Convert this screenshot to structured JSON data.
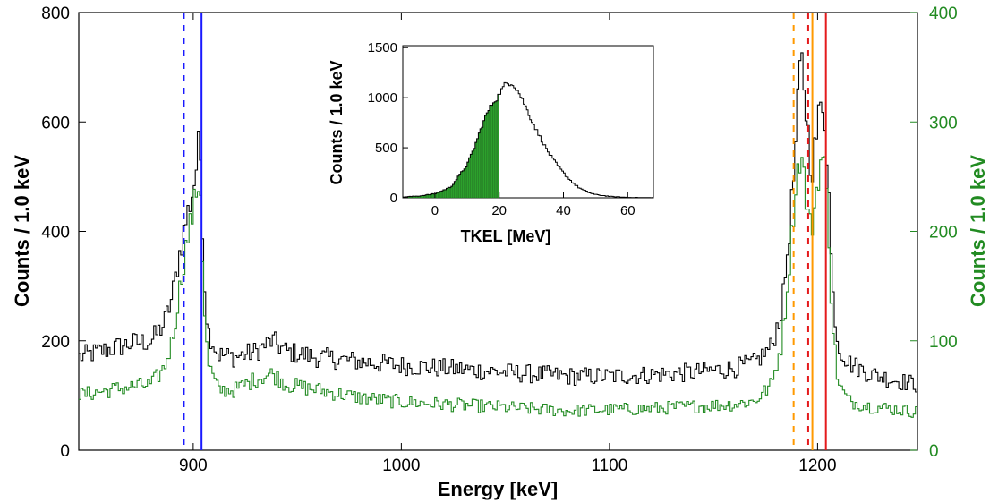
{
  "colors": {
    "black_series": "#000000",
    "green_series": "#228b22",
    "blue_solid": "#1a1aff",
    "blue_dashed": "#1a1aff",
    "red_solid": "#e41a1c",
    "red_dashed": "#e41a1c",
    "orange_solid": "#ff9900",
    "orange_dashed": "#ff9900",
    "inset_fill": "#2ca02c"
  },
  "chart_data": [
    {
      "type": "line",
      "style": "step-histogram",
      "xlabel": "Energy [keV]",
      "ylabel_left": "Counts / 1.0 keV",
      "ylabel_right": "Counts / 1.0 keV",
      "xlim": [
        845,
        1248
      ],
      "ylim_left": [
        0,
        800
      ],
      "ylim_right": [
        0,
        400
      ],
      "x_ticks": [
        900,
        1000,
        1100,
        1200
      ],
      "y_ticks_left": [
        0,
        200,
        400,
        600,
        800
      ],
      "y_ticks_right": [
        0,
        100,
        200,
        300,
        400
      ],
      "grid": false,
      "series": [
        {
          "axis": "left",
          "color": "#000000",
          "points": [
            [
              845,
              170
            ],
            [
              860,
              185
            ],
            [
              870,
              195
            ],
            [
              880,
              200
            ],
            [
              886,
              230
            ],
            [
              890,
              280
            ],
            [
              893,
              350
            ],
            [
              896,
              410
            ],
            [
              899,
              460
            ],
            [
              901,
              500
            ],
            [
              903,
              570
            ],
            [
              904,
              500
            ],
            [
              905,
              330
            ],
            [
              907,
              220
            ],
            [
              912,
              175
            ],
            [
              920,
              170
            ],
            [
              930,
              180
            ],
            [
              938,
              200
            ],
            [
              945,
              180
            ],
            [
              960,
              170
            ],
            [
              980,
              162
            ],
            [
              1000,
              155
            ],
            [
              1020,
              150
            ],
            [
              1040,
              145
            ],
            [
              1060,
              140
            ],
            [
              1080,
              135
            ],
            [
              1100,
              135
            ],
            [
              1120,
              138
            ],
            [
              1140,
              142
            ],
            [
              1160,
              150
            ],
            [
              1170,
              160
            ],
            [
              1178,
              190
            ],
            [
              1183,
              260
            ],
            [
              1186,
              380
            ],
            [
              1189,
              520
            ],
            [
              1191,
              660
            ],
            [
              1192,
              720
            ],
            [
              1193,
              690
            ],
            [
              1195,
              600
            ],
            [
              1197,
              510
            ],
            [
              1199,
              560
            ],
            [
              1201,
              620
            ],
            [
              1203,
              640
            ],
            [
              1205,
              520
            ],
            [
              1207,
              300
            ],
            [
              1210,
              190
            ],
            [
              1215,
              160
            ],
            [
              1225,
              140
            ],
            [
              1235,
              130
            ],
            [
              1248,
              120
            ]
          ]
        },
        {
          "axis": "right",
          "color": "#228b22",
          "points": [
            [
              845,
              50
            ],
            [
              860,
              55
            ],
            [
              870,
              58
            ],
            [
              880,
              60
            ],
            [
              886,
              75
            ],
            [
              890,
              100
            ],
            [
              893,
              140
            ],
            [
              896,
              180
            ],
            [
              899,
              210
            ],
            [
              901,
              230
            ],
            [
              903,
              250
            ],
            [
              904,
              220
            ],
            [
              905,
              140
            ],
            [
              907,
              80
            ],
            [
              912,
              55
            ],
            [
              920,
              55
            ],
            [
              930,
              65
            ],
            [
              938,
              70
            ],
            [
              945,
              60
            ],
            [
              960,
              55
            ],
            [
              980,
              48
            ],
            [
              1000,
              44
            ],
            [
              1020,
              42
            ],
            [
              1040,
              40
            ],
            [
              1060,
              38
            ],
            [
              1080,
              36
            ],
            [
              1100,
              37
            ],
            [
              1120,
              38
            ],
            [
              1140,
              40
            ],
            [
              1160,
              42
            ],
            [
              1170,
              45
            ],
            [
              1178,
              60
            ],
            [
              1183,
              100
            ],
            [
              1186,
              160
            ],
            [
              1189,
              230
            ],
            [
              1191,
              265
            ],
            [
              1192,
              270
            ],
            [
              1193,
              260
            ],
            [
              1195,
              220
            ],
            [
              1197,
              200
            ],
            [
              1199,
              230
            ],
            [
              1201,
              260
            ],
            [
              1203,
              270
            ],
            [
              1205,
              220
            ],
            [
              1207,
              120
            ],
            [
              1210,
              60
            ],
            [
              1215,
              45
            ],
            [
              1225,
              40
            ],
            [
              1235,
              38
            ],
            [
              1248,
              35
            ]
          ]
        }
      ],
      "markers": [
        {
          "x": 895.5,
          "color": "#1a1aff",
          "style": "dashed"
        },
        {
          "x": 904.0,
          "color": "#1a1aff",
          "style": "solid"
        },
        {
          "x": 1188.5,
          "color": "#ff9900",
          "style": "dashed"
        },
        {
          "x": 1195.5,
          "color": "#e41a1c",
          "style": "dashed"
        },
        {
          "x": 1197.5,
          "color": "#ff9900",
          "style": "solid"
        },
        {
          "x": 1204.0,
          "color": "#e41a1c",
          "style": "solid"
        }
      ]
    },
    {
      "type": "bar",
      "style": "inset-histogram",
      "xlabel": "TKEL [MeV]",
      "ylabel": "Counts / 1.0 keV",
      "xlim": [
        -10,
        68
      ],
      "ylim": [
        0,
        1520
      ],
      "x_ticks": [
        0,
        20,
        40,
        60
      ],
      "y_ticks": [
        0,
        500,
        1000,
        1500
      ],
      "fill_below": 20,
      "profile": [
        [
          -10,
          8
        ],
        [
          -5,
          18
        ],
        [
          0,
          40
        ],
        [
          5,
          110
        ],
        [
          8,
          240
        ],
        [
          10,
          330
        ],
        [
          12,
          480
        ],
        [
          14,
          660
        ],
        [
          16,
          830
        ],
        [
          18,
          950
        ],
        [
          19.5,
          1000
        ],
        [
          20,
          1040
        ],
        [
          22,
          1140
        ],
        [
          24,
          1150
        ],
        [
          26,
          1060
        ],
        [
          28,
          930
        ],
        [
          30,
          780
        ],
        [
          32,
          650
        ],
        [
          34,
          530
        ],
        [
          36,
          420
        ],
        [
          38,
          330
        ],
        [
          40,
          250
        ],
        [
          42,
          180
        ],
        [
          44,
          120
        ],
        [
          46,
          80
        ],
        [
          48,
          52
        ],
        [
          50,
          32
        ],
        [
          55,
          12
        ],
        [
          60,
          4
        ],
        [
          65,
          2
        ]
      ]
    }
  ]
}
